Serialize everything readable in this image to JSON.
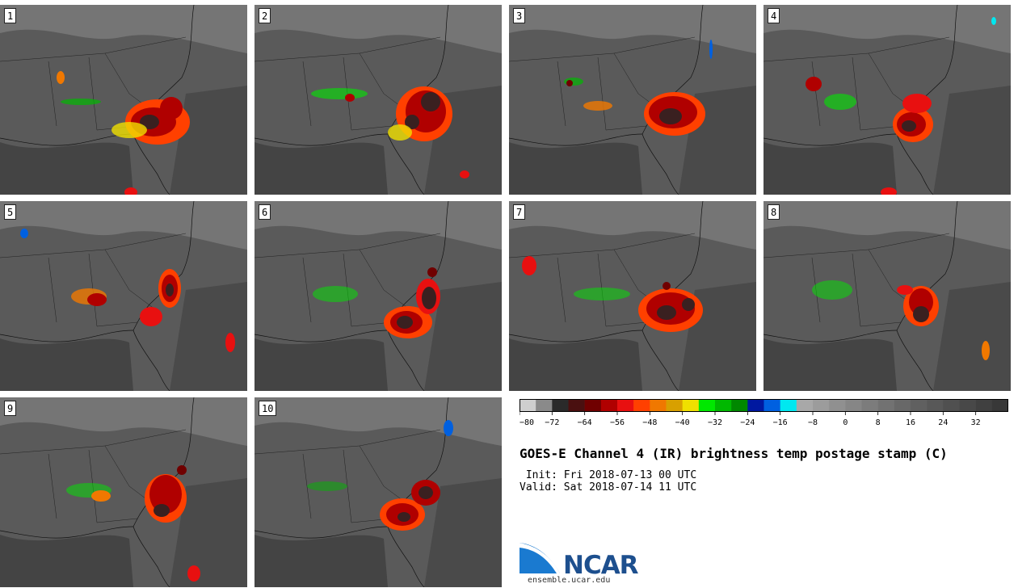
{
  "panels": [
    {
      "label": "1"
    },
    {
      "label": "2"
    },
    {
      "label": "3"
    },
    {
      "label": "4"
    },
    {
      "label": "5"
    },
    {
      "label": "6"
    },
    {
      "label": "7"
    },
    {
      "label": "8"
    },
    {
      "label": "9"
    },
    {
      "label": "10"
    }
  ],
  "colorbar": {
    "colors": [
      "#cfcfcf",
      "#8a8a8a",
      "#2a2a2a",
      "#4a1010",
      "#700000",
      "#b00000",
      "#e81010",
      "#ff4000",
      "#f07800",
      "#d8a000",
      "#f0e000",
      "#00e800",
      "#00b800",
      "#008800",
      "#0018a0",
      "#0060e0",
      "#00e8f0",
      "#a8a8a8",
      "#9c9c9c",
      "#909090",
      "#868686",
      "#7c7c7c",
      "#727272",
      "#686868",
      "#606060",
      "#585858",
      "#505050",
      "#484848",
      "#404040",
      "#383838"
    ],
    "tick_labels": [
      "-80",
      "-72",
      "-64",
      "-56",
      "-48",
      "-40",
      "-32",
      "-24",
      "-16",
      "-8",
      "0",
      "8",
      "16",
      "24",
      "32"
    ]
  },
  "title": "GOES-E Channel 4 (IR) brightness temp postage stamp (C)",
  "init": " Init: Fri 2018-07-13 00 UTC",
  "valid": "Valid: Sat 2018-07-14 11 UTC",
  "logo": {
    "text": "NCAR",
    "url": "ensemble.ucar.edu"
  }
}
